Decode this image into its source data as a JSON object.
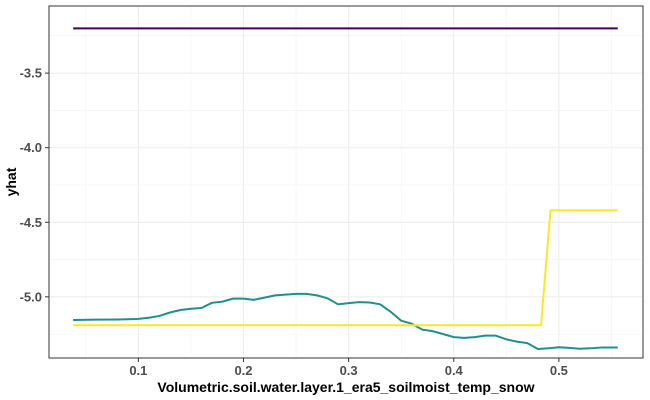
{
  "chart_data": {
    "type": "line",
    "xlabel": "Volumetric.soil.water.layer.1_era5_soilmoist_temp_snow",
    "ylabel": "yhat",
    "xlim": [
      0.015,
      0.58
    ],
    "ylim": [
      -5.41,
      -3.05
    ],
    "x_ticks": [
      0.1,
      0.2,
      0.3,
      0.4,
      0.5
    ],
    "x_tick_labels": [
      "0.1",
      "0.2",
      "0.3",
      "0.4",
      "0.5"
    ],
    "y_ticks": [
      -3.5,
      -4.0,
      -4.5,
      -5.0
    ],
    "y_tick_labels": [
      "-3.5",
      "-4.0",
      "-4.5",
      "-5.0"
    ],
    "grid": true,
    "legend": "none",
    "series": [
      {
        "color": "#440154",
        "x": [
          0.038,
          0.556
        ],
        "y": [
          -3.2,
          -3.2
        ]
      },
      {
        "color": "#21908c",
        "x": [
          0.038,
          0.06,
          0.08,
          0.1,
          0.11,
          0.12,
          0.13,
          0.14,
          0.15,
          0.16,
          0.17,
          0.18,
          0.19,
          0.2,
          0.21,
          0.22,
          0.23,
          0.24,
          0.25,
          0.26,
          0.27,
          0.28,
          0.29,
          0.3,
          0.31,
          0.32,
          0.33,
          0.34,
          0.35,
          0.36,
          0.37,
          0.38,
          0.39,
          0.4,
          0.41,
          0.42,
          0.43,
          0.44,
          0.45,
          0.46,
          0.47,
          0.48,
          0.49,
          0.5,
          0.51,
          0.52,
          0.53,
          0.54,
          0.556
        ],
        "y": [
          -5.155,
          -5.153,
          -5.152,
          -5.148,
          -5.14,
          -5.128,
          -5.105,
          -5.088,
          -5.08,
          -5.075,
          -5.04,
          -5.032,
          -5.012,
          -5.012,
          -5.02,
          -5.005,
          -4.99,
          -4.985,
          -4.98,
          -4.98,
          -4.99,
          -5.01,
          -5.05,
          -5.042,
          -5.035,
          -5.038,
          -5.05,
          -5.1,
          -5.16,
          -5.18,
          -5.22,
          -5.23,
          -5.25,
          -5.27,
          -5.275,
          -5.27,
          -5.26,
          -5.26,
          -5.285,
          -5.3,
          -5.31,
          -5.35,
          -5.345,
          -5.338,
          -5.342,
          -5.348,
          -5.345,
          -5.34,
          -5.34
        ]
      },
      {
        "color": "#fde725",
        "x": [
          0.038,
          0.483,
          0.492,
          0.556
        ],
        "y": [
          -5.19,
          -5.19,
          -4.42,
          -4.42
        ]
      }
    ]
  }
}
